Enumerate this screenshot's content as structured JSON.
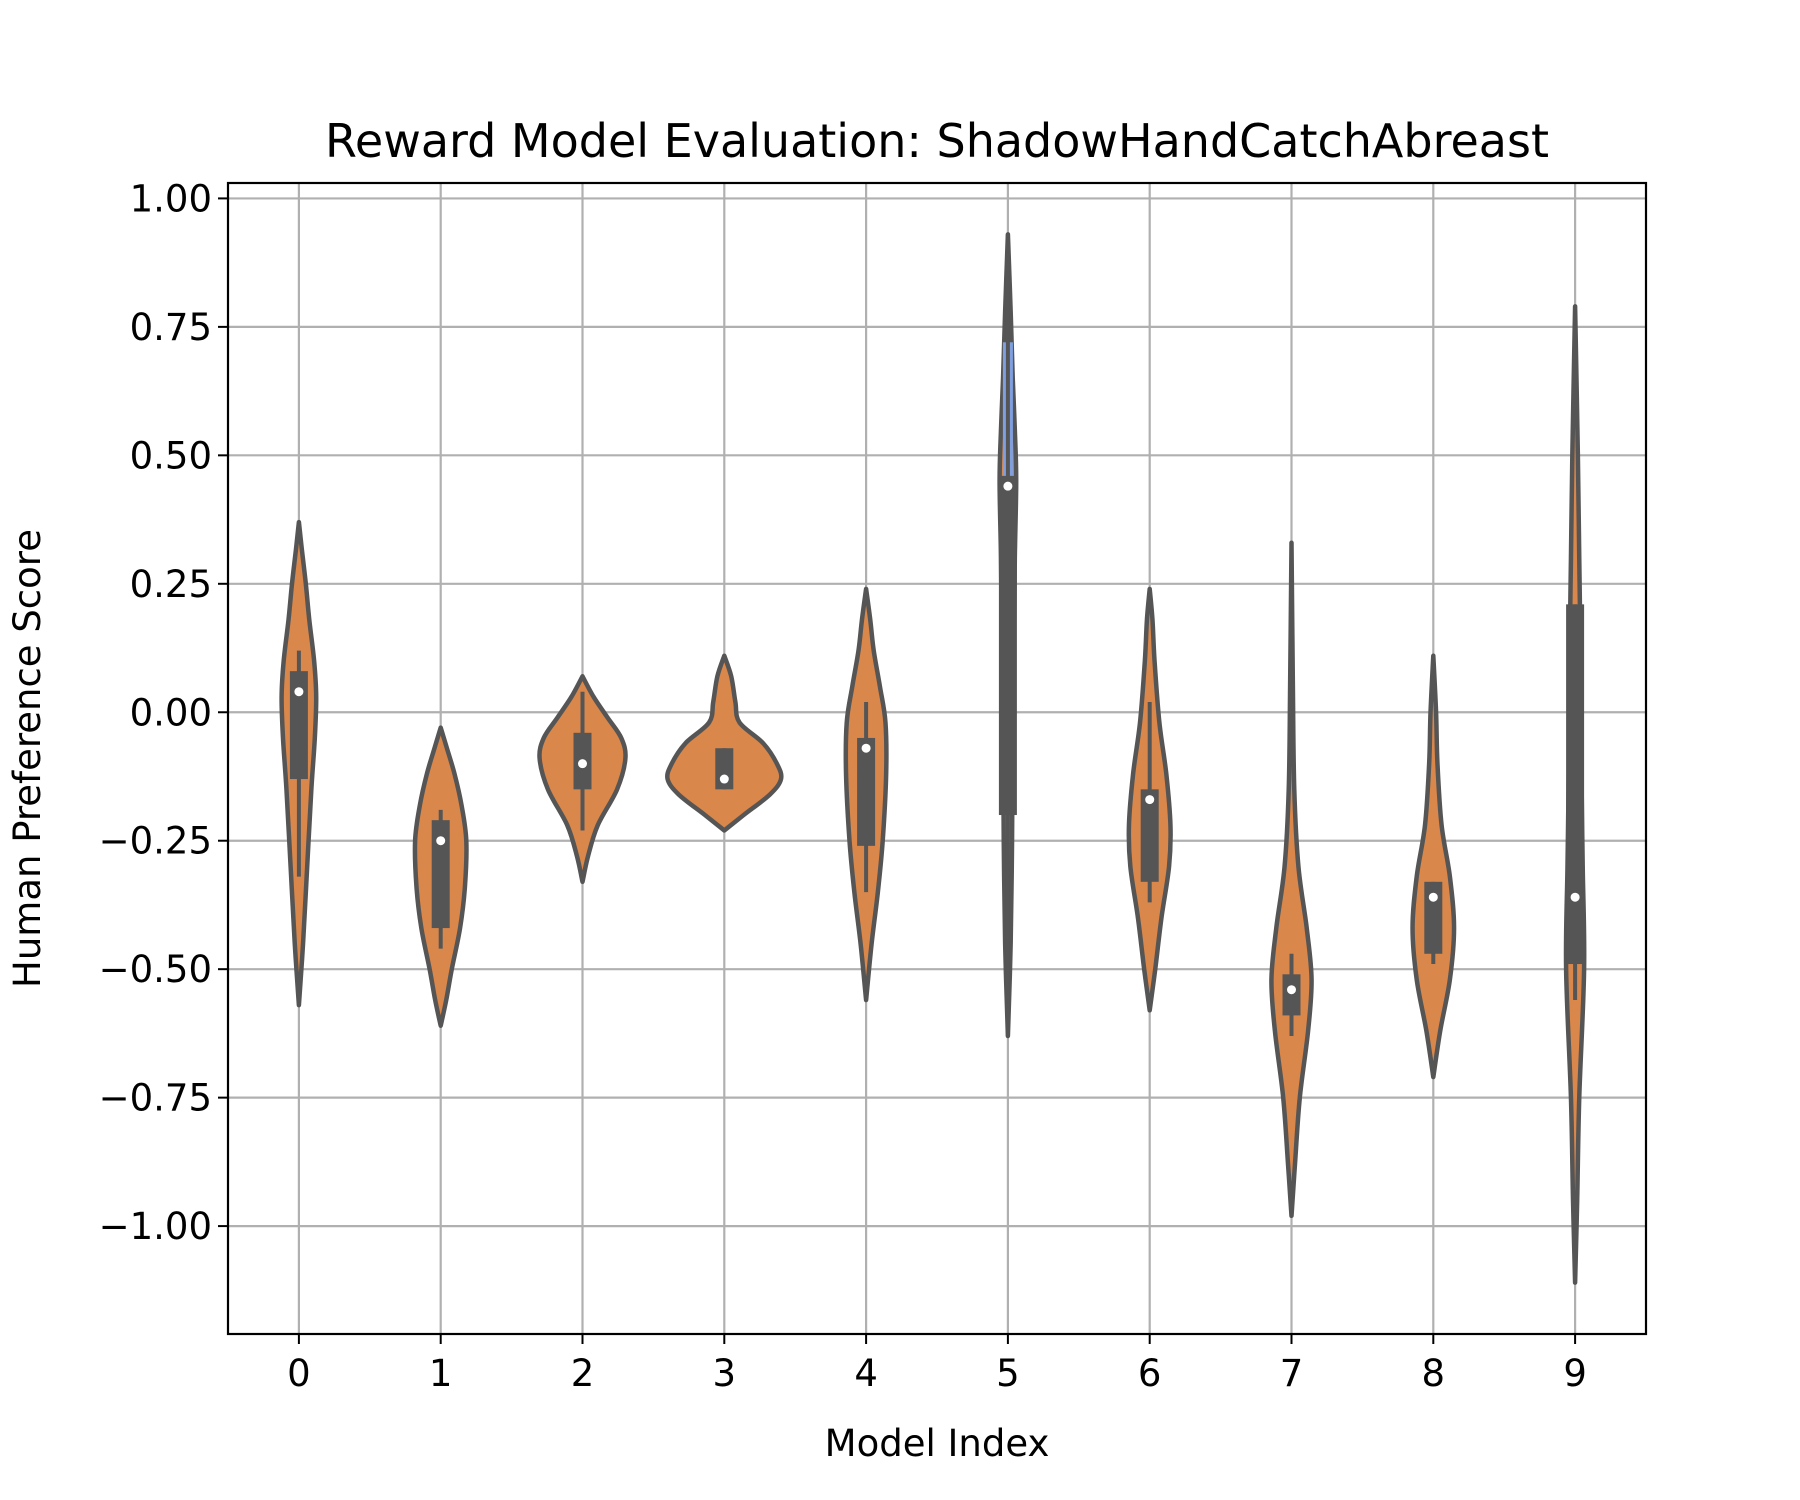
{
  "chart_data": {
    "type": "violin",
    "title": "Reward Model Evaluation: ShadowHandCatchAbreast",
    "xlabel": "Model Index",
    "ylabel": "Human Preference Score",
    "categories": [
      "0",
      "1",
      "2",
      "3",
      "4",
      "5",
      "6",
      "7",
      "8",
      "9"
    ],
    "yticks": [
      1.0,
      0.75,
      0.5,
      0.25,
      0.0,
      -0.25,
      -0.5,
      -0.75,
      -1.0
    ],
    "ytick_labels": [
      "1.00",
      "0.75",
      "0.50",
      "0.25",
      "0.00",
      "−0.25",
      "−0.50",
      "−0.75",
      "−1.00"
    ],
    "ylim": [
      -1.21,
      1.03
    ],
    "grid": true,
    "colors": {
      "violin": "#d9874b",
      "violin_highlight": "#7fa0e0",
      "outline": "#555555",
      "grid": "#b0b0b0",
      "median": "#ffffff"
    },
    "violins": [
      {
        "x": "0",
        "min": -0.57,
        "max": 0.37,
        "q1": -0.13,
        "median": 0.04,
        "q3": 0.08,
        "whisker_low": -0.32,
        "whisker_high": 0.12,
        "profile": [
          [
            -0.57,
            0.0
          ],
          [
            -0.45,
            0.03
          ],
          [
            -0.3,
            0.06
          ],
          [
            -0.15,
            0.09
          ],
          [
            -0.05,
            0.115
          ],
          [
            0.03,
            0.125
          ],
          [
            0.1,
            0.11
          ],
          [
            0.18,
            0.075
          ],
          [
            0.25,
            0.05
          ],
          [
            0.32,
            0.02
          ],
          [
            0.37,
            0.0
          ]
        ]
      },
      {
        "x": "1",
        "min": -0.61,
        "max": -0.03,
        "q1": -0.42,
        "median": -0.25,
        "q3": -0.21,
        "whisker_low": -0.46,
        "whisker_high": -0.19,
        "profile": [
          [
            -0.61,
            0.0
          ],
          [
            -0.56,
            0.04
          ],
          [
            -0.5,
            0.08
          ],
          [
            -0.42,
            0.14
          ],
          [
            -0.34,
            0.175
          ],
          [
            -0.25,
            0.185
          ],
          [
            -0.18,
            0.15
          ],
          [
            -0.12,
            0.1
          ],
          [
            -0.07,
            0.045
          ],
          [
            -0.03,
            0.0
          ]
        ]
      },
      {
        "x": "2",
        "min": -0.33,
        "max": 0.07,
        "q1": -0.15,
        "median": -0.1,
        "q3": -0.04,
        "whisker_low": -0.23,
        "whisker_high": 0.04,
        "profile": [
          [
            -0.33,
            0.0
          ],
          [
            -0.28,
            0.04
          ],
          [
            -0.22,
            0.11
          ],
          [
            -0.15,
            0.25
          ],
          [
            -0.09,
            0.31
          ],
          [
            -0.05,
            0.28
          ],
          [
            -0.01,
            0.18
          ],
          [
            0.03,
            0.08
          ],
          [
            0.07,
            0.0
          ]
        ]
      },
      {
        "x": "3",
        "min": -0.23,
        "max": 0.11,
        "q1": -0.15,
        "median": -0.13,
        "q3": -0.07,
        "whisker_low": -0.15,
        "whisker_high": -0.07,
        "profile": [
          [
            -0.23,
            0.0
          ],
          [
            -0.2,
            0.14
          ],
          [
            -0.16,
            0.33
          ],
          [
            -0.13,
            0.41
          ],
          [
            -0.1,
            0.38
          ],
          [
            -0.06,
            0.28
          ],
          [
            -0.02,
            0.11
          ],
          [
            0.02,
            0.08
          ],
          [
            0.07,
            0.05
          ],
          [
            0.11,
            0.0
          ]
        ]
      },
      {
        "x": "4",
        "min": -0.56,
        "max": 0.24,
        "q1": -0.26,
        "median": -0.07,
        "q3": -0.05,
        "whisker_low": -0.35,
        "whisker_high": 0.02,
        "profile": [
          [
            -0.56,
            0.0
          ],
          [
            -0.45,
            0.04
          ],
          [
            -0.35,
            0.085
          ],
          [
            -0.25,
            0.12
          ],
          [
            -0.12,
            0.145
          ],
          [
            -0.02,
            0.14
          ],
          [
            0.05,
            0.1
          ],
          [
            0.12,
            0.055
          ],
          [
            0.18,
            0.03
          ],
          [
            0.24,
            0.0
          ]
        ]
      },
      {
        "x": "5",
        "min": -0.63,
        "max": 0.93,
        "q1": -0.2,
        "median": 0.44,
        "q3": 0.46,
        "whisker_low": -0.63,
        "whisker_high": 0.93,
        "highlight_range": [
          0.46,
          0.72
        ],
        "profile": [
          [
            -0.63,
            0.0
          ],
          [
            -0.45,
            0.02
          ],
          [
            -0.25,
            0.03
          ],
          [
            -0.05,
            0.035
          ],
          [
            0.15,
            0.045
          ],
          [
            0.3,
            0.05
          ],
          [
            0.45,
            0.06
          ],
          [
            0.55,
            0.05
          ],
          [
            0.65,
            0.035
          ],
          [
            0.78,
            0.02
          ],
          [
            0.93,
            0.0
          ]
        ]
      },
      {
        "x": "6",
        "min": -0.58,
        "max": 0.24,
        "q1": -0.33,
        "median": -0.17,
        "q3": -0.15,
        "whisker_low": -0.37,
        "whisker_high": 0.02,
        "profile": [
          [
            -0.58,
            0.0
          ],
          [
            -0.5,
            0.04
          ],
          [
            -0.4,
            0.085
          ],
          [
            -0.3,
            0.14
          ],
          [
            -0.22,
            0.15
          ],
          [
            -0.12,
            0.12
          ],
          [
            -0.02,
            0.07
          ],
          [
            0.1,
            0.035
          ],
          [
            0.18,
            0.02
          ],
          [
            0.24,
            0.0
          ]
        ]
      },
      {
        "x": "7",
        "min": -0.98,
        "max": 0.33,
        "q1": -0.59,
        "median": -0.54,
        "q3": -0.51,
        "whisker_low": -0.63,
        "whisker_high": -0.47,
        "profile": [
          [
            -0.98,
            0.0
          ],
          [
            -0.88,
            0.025
          ],
          [
            -0.75,
            0.06
          ],
          [
            -0.62,
            0.12
          ],
          [
            -0.52,
            0.145
          ],
          [
            -0.42,
            0.11
          ],
          [
            -0.3,
            0.05
          ],
          [
            -0.15,
            0.02
          ],
          [
            0.05,
            0.01
          ],
          [
            0.33,
            0.0
          ]
        ]
      },
      {
        "x": "8",
        "min": -0.71,
        "max": 0.11,
        "q1": -0.47,
        "median": -0.36,
        "q3": -0.33,
        "whisker_low": -0.49,
        "whisker_high": -0.33,
        "profile": [
          [
            -0.71,
            0.0
          ],
          [
            -0.62,
            0.05
          ],
          [
            -0.52,
            0.12
          ],
          [
            -0.42,
            0.15
          ],
          [
            -0.32,
            0.12
          ],
          [
            -0.22,
            0.06
          ],
          [
            -0.1,
            0.03
          ],
          [
            0.0,
            0.02
          ],
          [
            0.11,
            0.0
          ]
        ]
      },
      {
        "x": "9",
        "min": -1.11,
        "max": 0.79,
        "q1": -0.49,
        "median": -0.36,
        "q3": 0.21,
        "whisker_low": -0.56,
        "whisker_high": 0.21,
        "profile": [
          [
            -1.11,
            0.0
          ],
          [
            -0.95,
            0.015
          ],
          [
            -0.75,
            0.03
          ],
          [
            -0.5,
            0.065
          ],
          [
            -0.3,
            0.055
          ],
          [
            -0.1,
            0.045
          ],
          [
            0.1,
            0.04
          ],
          [
            0.3,
            0.03
          ],
          [
            0.5,
            0.02
          ],
          [
            0.79,
            0.0
          ]
        ]
      }
    ]
  }
}
